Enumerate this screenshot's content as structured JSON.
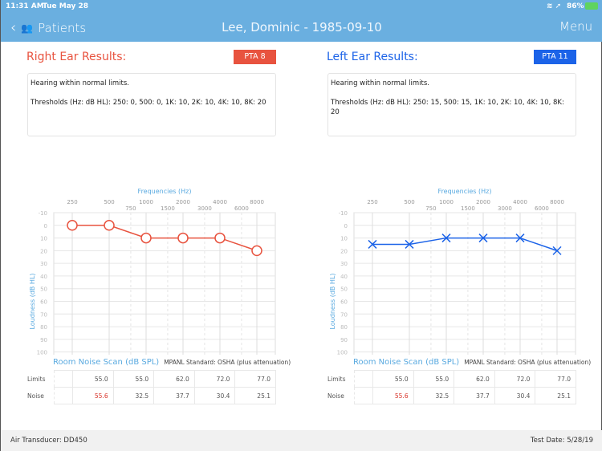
{
  "status_bar": {
    "time": "11:31 AM",
    "date": "Tue May 28",
    "battery": "86%"
  },
  "header": {
    "back_label": "Patients",
    "title": "Lee, Dominic - 1985-09-10",
    "menu_label": "Menu"
  },
  "colors": {
    "right": "#e8533f",
    "left": "#1c63e8",
    "header": "#6aafe0"
  },
  "panels": [
    {
      "title": "Right Ear Results:",
      "pta": "PTA 8",
      "summary": "Hearing within normal limits.",
      "thresholds": "Thresholds (Hz: dB HL): 250: 0, 500: 0, 1K: 10, 2K: 10, 4K: 10, 8K: 20"
    },
    {
      "title": "Left Ear Results:",
      "pta": "PTA 11",
      "summary": "Hearing within normal limits.",
      "thresholds": "Thresholds (Hz: dB HL): 250: 15, 500: 15, 1K: 10, 2K: 10, 4K: 10, 8K: 20"
    }
  ],
  "chart_data": [
    {
      "type": "line",
      "xlabel": "Frequencies (Hz)",
      "ylabel": "Loudness (dB HL)",
      "x_ticks_major": [
        "250",
        "500",
        "1000",
        "2000",
        "4000",
        "8000"
      ],
      "x_ticks_minor": [
        "750",
        "1500",
        "3000",
        "6000"
      ],
      "ylim": [
        -10,
        130
      ],
      "y_ticks": [
        -10,
        0,
        10,
        20,
        30,
        40,
        50,
        60,
        70,
        80,
        90,
        100,
        110,
        120,
        130
      ],
      "marker": "circle",
      "series": [
        {
          "x": [
            250,
            500,
            1000,
            2000,
            4000,
            8000
          ],
          "y": [
            0,
            0,
            10,
            10,
            10,
            20
          ]
        }
      ]
    },
    {
      "type": "line",
      "xlabel": "Frequencies (Hz)",
      "ylabel": "Loudness (dB HL)",
      "x_ticks_major": [
        "250",
        "500",
        "1000",
        "2000",
        "4000",
        "8000"
      ],
      "x_ticks_minor": [
        "750",
        "1500",
        "3000",
        "6000"
      ],
      "ylim": [
        -10,
        130
      ],
      "y_ticks": [
        -10,
        0,
        10,
        20,
        30,
        40,
        50,
        60,
        70,
        80,
        90,
        100,
        110,
        120,
        130
      ],
      "marker": "x",
      "series": [
        {
          "x": [
            250,
            500,
            1000,
            2000,
            4000,
            8000
          ],
          "y": [
            15,
            15,
            10,
            10,
            10,
            20
          ]
        }
      ]
    }
  ],
  "noise": {
    "title": "Room Noise Scan (dB SPL)",
    "standard": "MPANL Standard: OSHA (plus attenuation)",
    "limits_label": "Limits",
    "noise_label": "Noise",
    "limits": [
      "55.0",
      "55.0",
      "62.0",
      "72.0",
      "77.0"
    ],
    "noise": [
      "55.6",
      "32.5",
      "37.7",
      "30.4",
      "25.1"
    ],
    "exceeded_color": "#d9342b"
  },
  "footer": {
    "transducer": "Air Transducer: DD450",
    "test_date": "Test Date: 5/28/19"
  }
}
